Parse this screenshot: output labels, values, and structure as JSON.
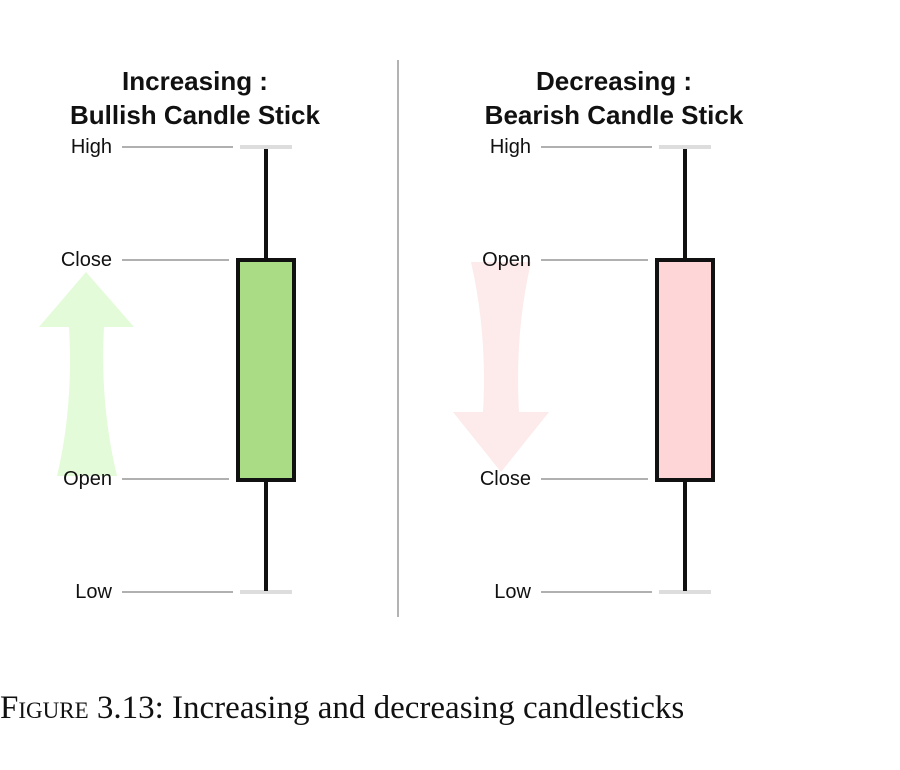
{
  "panels": [
    {
      "id": "bullish",
      "title_line1": "Increasing :",
      "title_line2": "Bullish Candle Stick",
      "levels": {
        "high": "High",
        "upper": "Close",
        "lower": "Open",
        "low": "Low"
      },
      "body_color": "#a9dc84",
      "arrow_color": "#e3fbd8",
      "arrow_direction": "up"
    },
    {
      "id": "bearish",
      "title_line1": "Decreasing :",
      "title_line2": "Bearish Candle Stick",
      "levels": {
        "high": "High",
        "upper": "Open",
        "lower": "Close",
        "low": "Low"
      },
      "body_color": "#ffd6d8",
      "arrow_color": "#fdeaea",
      "arrow_direction": "down"
    }
  ],
  "caption": {
    "figure_word": "Figure",
    "number": "3.13:",
    "text": "Increasing and decreasing candlesticks"
  },
  "colors": {
    "divider": "#9a9a9a",
    "guide_line": "#b0b0b0",
    "tick": "#dddddd",
    "outline": "#111111"
  }
}
